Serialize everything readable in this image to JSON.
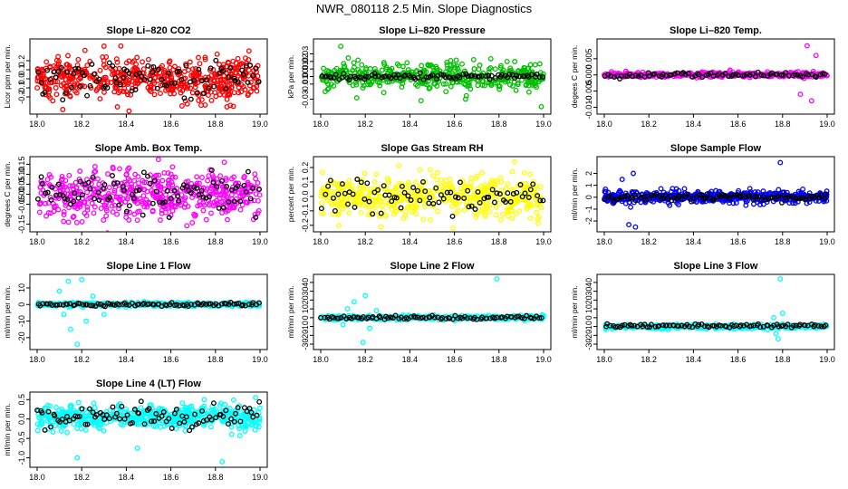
{
  "page": {
    "title": "NWR_080118  2.5 Min. Slope Diagnostics"
  },
  "chart_data": [
    {
      "type": "scatter",
      "title": "Slope Li–820 CO2",
      "ylabel": "Licor ppm per min.",
      "xlim": [
        18.0,
        19.0
      ],
      "ylim": [
        -0.35,
        0.4
      ],
      "xticks": [
        "18.0",
        "18.2",
        "18.4",
        "18.6",
        "18.8",
        "19.0"
      ],
      "yticks": [
        "-0.2",
        "-0.1",
        "0.0",
        "0.1",
        "0.2"
      ],
      "color": "#ff0000",
      "series": [
        {
          "name": "all",
          "n": 520,
          "spread": 0.12,
          "center": 0.0
        },
        {
          "name": "selected",
          "n": 90,
          "spread": 0.1,
          "center": 0.0
        }
      ],
      "outliers": [
        [
          18.3,
          0.36
        ],
        [
          18.36,
          -0.31
        ],
        [
          18.65,
          -0.3
        ]
      ]
    },
    {
      "type": "scatter",
      "title": "Slope Li–820 Pressure",
      "ylabel": "kPa per min.",
      "xlim": [
        18.0,
        19.0
      ],
      "ylim": [
        -0.045,
        0.045
      ],
      "xticks": [
        "18.0",
        "18.2",
        "18.4",
        "18.6",
        "18.8",
        "19.0"
      ],
      "yticks": [
        "-0.03",
        "-0.01",
        "0.00",
        "0.01",
        "0.02",
        "0.03"
      ],
      "color": "#00c000",
      "series": [
        {
          "name": "all",
          "n": 480,
          "spread": 0.008,
          "center": 0.0
        },
        {
          "name": "selected",
          "n": 90,
          "spread": 0.002,
          "center": 0.0
        }
      ],
      "outliers": [
        [
          18.09,
          0.04
        ],
        [
          18.02,
          -0.02
        ],
        [
          18.45,
          -0.032
        ],
        [
          18.65,
          -0.03
        ],
        [
          18.99,
          -0.04
        ]
      ]
    },
    {
      "type": "scatter",
      "title": "Slope Li–820 Temp.",
      "ylabel": "degees C per min.",
      "xlim": [
        18.0,
        19.0
      ],
      "ylim": [
        -0.011,
        0.01
      ],
      "xticks": [
        "18.0",
        "18.2",
        "18.4",
        "18.6",
        "18.8",
        "19.0"
      ],
      "yticks": [
        "-0.010",
        "-0.005",
        "0.000",
        "0.005"
      ],
      "color": "#ff00ff",
      "series": [
        {
          "name": "all",
          "n": 420,
          "spread": 0.0004,
          "center": 0.0
        },
        {
          "name": "selected",
          "n": 80,
          "spread": 0.0004,
          "center": 0.0
        }
      ],
      "outliers": [
        [
          18.91,
          0.009
        ],
        [
          18.93,
          -0.008
        ],
        [
          18.95,
          0.006
        ],
        [
          18.88,
          -0.006
        ]
      ]
    },
    {
      "type": "scatter",
      "title": "Slope Amb. Box Temp.",
      "ylabel": "degrees C per min.",
      "xlim": [
        18.0,
        19.0
      ],
      "ylim": [
        -0.17,
        0.17
      ],
      "xticks": [
        "18.0",
        "18.2",
        "18.4",
        "18.6",
        "18.8",
        "19.0"
      ],
      "yticks": [
        "-0.15",
        "-0.05",
        "0.00",
        "0.05",
        "0.10",
        "0.15"
      ],
      "color": "#ff00ff",
      "series": [
        {
          "name": "all",
          "n": 520,
          "spread": 0.06,
          "center": 0.0
        },
        {
          "name": "selected",
          "n": 90,
          "spread": 0.05,
          "center": 0.0
        }
      ],
      "outliers": [
        [
          18.84,
          0.16
        ],
        [
          18.45,
          -0.13
        ]
      ]
    },
    {
      "type": "scatter",
      "title": "Slope Gas Stream RH",
      "ylabel": "percent per min.",
      "xlim": [
        18.0,
        19.0
      ],
      "ylim": [
        -0.22,
        0.25
      ],
      "xticks": [
        "18.0",
        "18.2",
        "18.4",
        "18.6",
        "18.8",
        "19.0"
      ],
      "yticks": [
        "-0.2",
        "-0.1",
        "0.0",
        "0.1",
        "0.2"
      ],
      "color": "#ffff00",
      "series": [
        {
          "name": "all",
          "n": 520,
          "spread": 0.07,
          "center": 0.0
        },
        {
          "name": "selected",
          "n": 80,
          "spread": 0.06,
          "center": 0.0
        }
      ],
      "outliers": [
        [
          18.87,
          0.24
        ],
        [
          18.27,
          -0.21
        ]
      ]
    },
    {
      "type": "scatter",
      "title": "Slope Sample Flow",
      "ylabel": "ml/min per min.",
      "xlim": [
        18.0,
        19.0
      ],
      "ylim": [
        -2.6,
        3.1
      ],
      "xticks": [
        "18.0",
        "18.2",
        "18.4",
        "18.6",
        "18.8",
        "19.0"
      ],
      "yticks": [
        "-2",
        "-1",
        "0",
        "1",
        "2"
      ],
      "color": "#0000ff",
      "series": [
        {
          "name": "all",
          "n": 520,
          "spread": 0.25,
          "center": 0.0
        },
        {
          "name": "selected",
          "n": 100,
          "spread": 0.15,
          "center": 0.0
        }
      ],
      "outliers": [
        [
          18.79,
          2.9
        ],
        [
          18.13,
          2.0
        ],
        [
          18.11,
          -2.3
        ],
        [
          18.14,
          -2.5
        ],
        [
          18.08,
          1.5
        ]
      ]
    },
    {
      "type": "scatter",
      "title": "Slope Line 1 Flow",
      "ylabel": "ml/min per min.",
      "xlim": [
        18.0,
        19.0
      ],
      "ylim": [
        -25,
        16
      ],
      "xticks": [
        "18.0",
        "18.2",
        "18.4",
        "18.6",
        "18.8",
        "19.0"
      ],
      "yticks": [
        "-20",
        "-10",
        "0",
        "10"
      ],
      "color": "#00ffff",
      "series": [
        {
          "name": "all",
          "n": 420,
          "spread": 0.6,
          "center": 0.0
        },
        {
          "name": "selected",
          "n": 90,
          "spread": 0.5,
          "center": 0.0
        }
      ],
      "outliers": [
        [
          18.18,
          -24
        ],
        [
          18.2,
          15
        ],
        [
          18.14,
          14
        ],
        [
          18.12,
          -6
        ],
        [
          18.1,
          8
        ],
        [
          18.15,
          -15
        ],
        [
          18.22,
          -10
        ],
        [
          18.3,
          -6
        ],
        [
          18.25,
          5
        ]
      ]
    },
    {
      "type": "scatter",
      "title": "Slope Line 2 Flow",
      "ylabel": "ml/min per min.",
      "xlim": [
        18.0,
        19.0
      ],
      "ylim": [
        -32,
        45
      ],
      "xticks": [
        "18.0",
        "18.2",
        "18.4",
        "18.6",
        "18.8",
        "19.0"
      ],
      "yticks": [
        "-30",
        "-20",
        "-10",
        "0",
        "10",
        "20",
        "30",
        "40"
      ],
      "color": "#00ffff",
      "series": [
        {
          "name": "all",
          "n": 420,
          "spread": 1.2,
          "center": 0.0
        },
        {
          "name": "selected",
          "n": 90,
          "spread": 1.0,
          "center": 0.0
        }
      ],
      "outliers": [
        [
          18.79,
          44
        ],
        [
          18.19,
          -28
        ],
        [
          18.2,
          25
        ],
        [
          18.15,
          18
        ],
        [
          18.12,
          10
        ],
        [
          18.22,
          -12
        ],
        [
          18.1,
          -8
        ],
        [
          18.25,
          8
        ]
      ]
    },
    {
      "type": "scatter",
      "title": "Slope Line 3 Flow",
      "ylabel": "ml/min per min.",
      "xlim": [
        18.0,
        19.0
      ],
      "ylim": [
        -32,
        45
      ],
      "xticks": [
        "18.0",
        "18.2",
        "18.4",
        "18.6",
        "18.8",
        "19.0"
      ],
      "yticks": [
        "-30",
        "-20",
        "-10",
        "0",
        "10",
        "20",
        "30",
        "40"
      ],
      "color": "#00ffff",
      "series": [
        {
          "name": "all",
          "n": 420,
          "spread": 1.2,
          "center": -10.0
        },
        {
          "name": "selected",
          "n": 90,
          "spread": 1.0,
          "center": -9.0
        }
      ],
      "outliers": [
        [
          18.79,
          44
        ],
        [
          18.78,
          -24
        ],
        [
          18.77,
          -18
        ],
        [
          18.8,
          5
        ],
        [
          18.76,
          0
        ]
      ]
    },
    {
      "type": "scatter",
      "title": "Slope Line 4 (LT) Flow",
      "ylabel": "ml/min per min.",
      "xlim": [
        18.0,
        19.0
      ],
      "ylim": [
        -1.15,
        0.6
      ],
      "xticks": [
        "18.0",
        "18.2",
        "18.4",
        "18.6",
        "18.8",
        "19.0"
      ],
      "yticks": [
        "-1.0",
        "-0.5",
        "0.0",
        "0.5"
      ],
      "color": "#00ffff",
      "series": [
        {
          "name": "all",
          "n": 520,
          "spread": 0.15,
          "center": 0.05
        },
        {
          "name": "selected",
          "n": 90,
          "spread": 0.13,
          "center": 0.05
        }
      ],
      "outliers": [
        [
          18.18,
          -1.0
        ],
        [
          18.83,
          -1.1
        ],
        [
          18.98,
          0.55
        ],
        [
          18.75,
          0.5
        ],
        [
          18.45,
          -0.75
        ]
      ]
    }
  ]
}
